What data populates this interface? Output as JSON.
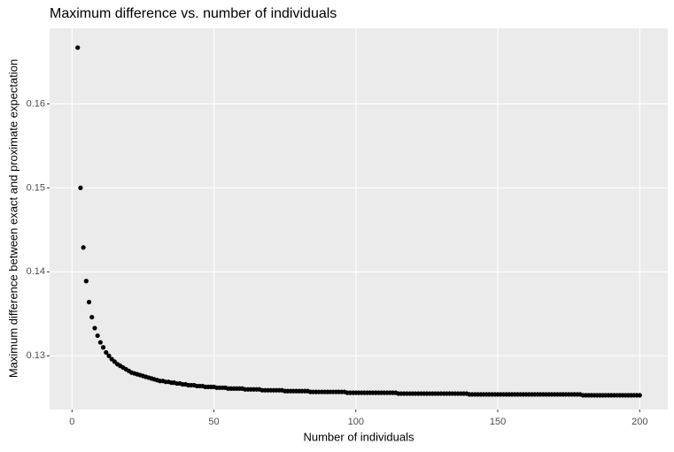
{
  "chart_data": {
    "type": "scatter",
    "title": "Maximum difference vs. number of individuals",
    "x_label": "Number of individuals",
    "y_label": "Maximum difference between exact and proximate expectation",
    "color": "#000000",
    "grid": true,
    "xlim": [
      -7.9,
      209.9
    ],
    "ylim": [
      0.1236,
      0.169
    ],
    "xticks": [
      0,
      50,
      100,
      150,
      200
    ],
    "yticks": [
      0.13,
      0.14,
      0.15,
      0.16
    ],
    "x": [
      2,
      3,
      4,
      5,
      6,
      7,
      8,
      9,
      10,
      11,
      12,
      13,
      14,
      15,
      16,
      17,
      18,
      19,
      20,
      21,
      22,
      23,
      24,
      25,
      26,
      27,
      28,
      29,
      30,
      31,
      32,
      33,
      34,
      35,
      36,
      37,
      38,
      39,
      40,
      41,
      42,
      43,
      44,
      45,
      46,
      47,
      48,
      49,
      50,
      51,
      52,
      53,
      54,
      55,
      56,
      57,
      58,
      59,
      60,
      61,
      62,
      63,
      64,
      65,
      66,
      67,
      68,
      69,
      70,
      71,
      72,
      73,
      74,
      75,
      76,
      77,
      78,
      79,
      80,
      81,
      82,
      83,
      84,
      85,
      86,
      87,
      88,
      89,
      90,
      91,
      92,
      93,
      94,
      95,
      96,
      97,
      98,
      99,
      100,
      101,
      102,
      103,
      104,
      105,
      106,
      107,
      108,
      109,
      110,
      111,
      112,
      113,
      114,
      115,
      116,
      117,
      118,
      119,
      120,
      121,
      122,
      123,
      124,
      125,
      126,
      127,
      128,
      129,
      130,
      131,
      132,
      133,
      134,
      135,
      136,
      137,
      138,
      139,
      140,
      141,
      142,
      143,
      144,
      145,
      146,
      147,
      148,
      149,
      150,
      151,
      152,
      153,
      154,
      155,
      156,
      157,
      158,
      159,
      160,
      161,
      162,
      163,
      164,
      165,
      166,
      167,
      168,
      169,
      170,
      171,
      172,
      173,
      174,
      175,
      176,
      177,
      178,
      179,
      180,
      181,
      182,
      183,
      184,
      185,
      186,
      187,
      188,
      189,
      190,
      191,
      192,
      193,
      194,
      195,
      196,
      197,
      198,
      199,
      200
    ],
    "values": [
      0.1667,
      0.15,
      0.1429,
      0.1389,
      0.1364,
      0.1346,
      0.1333,
      0.1324,
      0.1316,
      0.131,
      0.1304,
      0.13,
      0.1296,
      0.1293,
      0.129,
      0.1288,
      0.1286,
      0.1284,
      0.1282,
      0.128,
      0.1279,
      0.1278,
      0.1277,
      0.1276,
      0.1275,
      0.1274,
      0.1273,
      0.1272,
      0.1271,
      0.127,
      0.127,
      0.1269,
      0.1269,
      0.1268,
      0.1268,
      0.1267,
      0.1267,
      0.1266,
      0.1266,
      0.1265,
      0.1265,
      0.1265,
      0.1264,
      0.1264,
      0.1264,
      0.1263,
      0.1263,
      0.1263,
      0.1263,
      0.1262,
      0.1262,
      0.1262,
      0.1262,
      0.1261,
      0.1261,
      0.1261,
      0.1261,
      0.1261,
      0.1261,
      0.126,
      0.126,
      0.126,
      0.126,
      0.126,
      0.126,
      0.1259,
      0.1259,
      0.1259,
      0.1259,
      0.1259,
      0.1259,
      0.1259,
      0.1259,
      0.1258,
      0.1258,
      0.1258,
      0.1258,
      0.1258,
      0.1258,
      0.1258,
      0.1258,
      0.1258,
      0.1257,
      0.1257,
      0.1257,
      0.1257,
      0.1257,
      0.1257,
      0.1257,
      0.1257,
      0.1257,
      0.1257,
      0.1257,
      0.1257,
      0.1257,
      0.1256,
      0.1256,
      0.1256,
      0.1256,
      0.1256,
      0.1256,
      0.1256,
      0.1256,
      0.1256,
      0.1256,
      0.1256,
      0.1256,
      0.1256,
      0.1256,
      0.1256,
      0.1256,
      0.1256,
      0.1256,
      0.1255,
      0.1255,
      0.1255,
      0.1255,
      0.1255,
      0.1255,
      0.1255,
      0.1255,
      0.1255,
      0.1255,
      0.1255,
      0.1255,
      0.1255,
      0.1255,
      0.1255,
      0.1255,
      0.1255,
      0.1255,
      0.1255,
      0.1255,
      0.1255,
      0.1255,
      0.1255,
      0.1255,
      0.1255,
      0.1254,
      0.1254,
      0.1254,
      0.1254,
      0.1254,
      0.1254,
      0.1254,
      0.1254,
      0.1254,
      0.1254,
      0.1254,
      0.1254,
      0.1254,
      0.1254,
      0.1254,
      0.1254,
      0.1254,
      0.1254,
      0.1254,
      0.1254,
      0.1254,
      0.1254,
      0.1254,
      0.1254,
      0.1254,
      0.1254,
      0.1254,
      0.1254,
      0.1254,
      0.1254,
      0.1254,
      0.1254,
      0.1254,
      0.1254,
      0.1254,
      0.1254,
      0.1254,
      0.1254,
      0.1254,
      0.1254,
      0.1253,
      0.1253,
      0.1253,
      0.1253,
      0.1253,
      0.1253,
      0.1253,
      0.1253,
      0.1253,
      0.1253,
      0.1253,
      0.1253,
      0.1253,
      0.1253,
      0.1253,
      0.1253,
      0.1253,
      0.1253,
      0.1253,
      0.1253,
      0.1253
    ]
  }
}
